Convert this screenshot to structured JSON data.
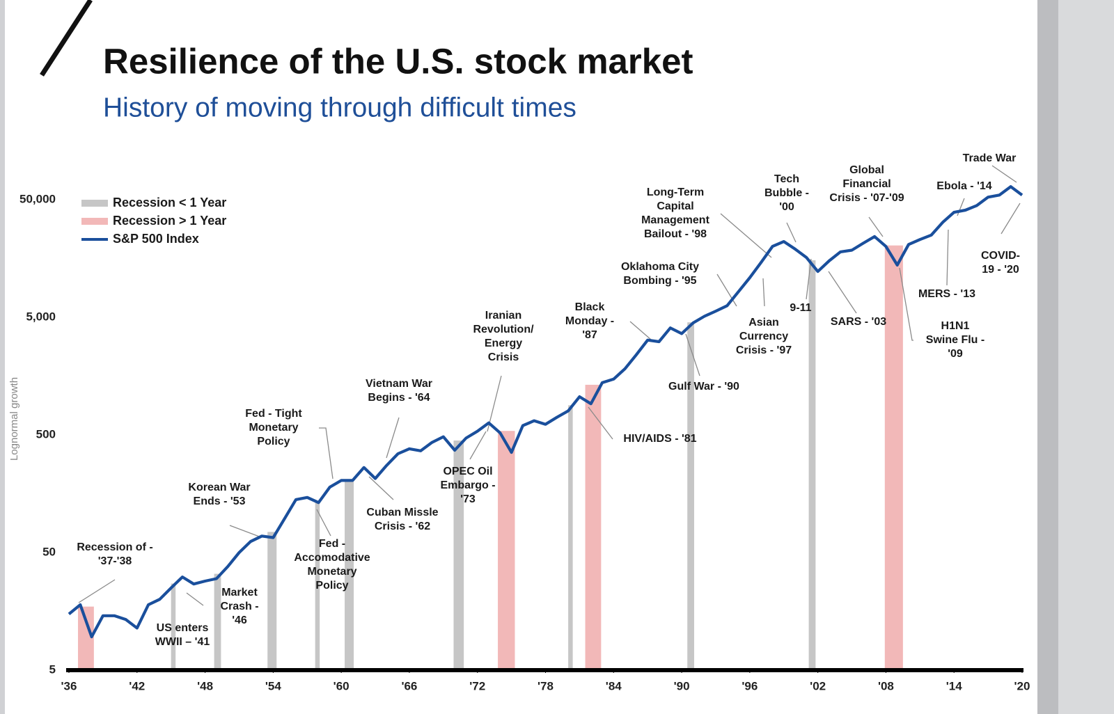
{
  "chart_data": {
    "type": "line",
    "title": "Resilience of the U.S. stock market",
    "subtitle": "History of moving through difficult times",
    "y_label": "Lognormal growth",
    "log_scale": true,
    "xlim": [
      1936,
      2020
    ],
    "xticks": [
      {
        "value": 1936,
        "label": "'36"
      },
      {
        "value": 1942,
        "label": "'42"
      },
      {
        "value": 1948,
        "label": "'48"
      },
      {
        "value": 1954,
        "label": "'54"
      },
      {
        "value": 1960,
        "label": "'60"
      },
      {
        "value": 1966,
        "label": "'66"
      },
      {
        "value": 1972,
        "label": "'72"
      },
      {
        "value": 1978,
        "label": "'78"
      },
      {
        "value": 1984,
        "label": "'84"
      },
      {
        "value": 1990,
        "label": "'90"
      },
      {
        "value": 1996,
        "label": "'96"
      },
      {
        "value": 2002,
        "label": "'02"
      },
      {
        "value": 2008,
        "label": "'08"
      },
      {
        "value": 2014,
        "label": "'14"
      },
      {
        "value": 2020,
        "label": "'20"
      }
    ],
    "ylim": [
      5,
      100000
    ],
    "yticks": [
      5,
      50,
      500,
      {
        "value": 5000,
        "label": "5,000"
      },
      {
        "value": 50000,
        "label": "50,000"
      }
    ],
    "x": [
      1936,
      1937,
      1938,
      1939,
      1940,
      1941,
      1942,
      1943,
      1944,
      1945,
      1946,
      1947,
      1948,
      1949,
      1950,
      1951,
      1952,
      1953,
      1954,
      1955,
      1956,
      1957,
      1958,
      1959,
      1960,
      1961,
      1962,
      1963,
      1964,
      1965,
      1966,
      1967,
      1968,
      1969,
      1970,
      1971,
      1972,
      1973,
      1974,
      1975,
      1976,
      1977,
      1978,
      1979,
      1980,
      1981,
      1982,
      1983,
      1984,
      1985,
      1986,
      1987,
      1988,
      1989,
      1990,
      1991,
      1992,
      1993,
      1994,
      1995,
      1996,
      1997,
      1998,
      1999,
      2000,
      2001,
      2002,
      2003,
      2004,
      2005,
      2006,
      2007,
      2008,
      2009,
      2010,
      2011,
      2012,
      2013,
      2014,
      2015,
      2016,
      2017,
      2018,
      2019,
      2020
    ],
    "series": [
      {
        "name": "S&P 500 Index",
        "color": "#1a4f9c",
        "values": [
          15,
          18,
          9.6,
          14.5,
          14.5,
          13.5,
          11.4,
          18,
          20,
          25,
          31,
          27,
          28.6,
          30,
          38,
          50,
          62,
          69,
          67,
          97,
          141,
          147,
          133,
          180,
          205,
          205,
          264,
          213,
          275,
          346,
          381,
          366,
          432,
          482,
          370,
          470,
          537,
          632,
          520,
          355,
          600,
          660,
          615,
          705,
          800,
          1055,
          920,
          1390,
          1490,
          1825,
          2400,
          3200,
          3100,
          4060,
          3630,
          4470,
          5100,
          5640,
          6270,
          8250,
          10850,
          14650,
          20000,
          22000,
          19000,
          16100,
          12250,
          15100,
          18000,
          18600,
          21300,
          24300,
          20000,
          13900,
          20800,
          22900,
          25000,
          32000,
          39000,
          40700,
          44500,
          52500,
          54700,
          64500,
          54700
        ]
      }
    ],
    "bands": [
      {
        "name": "Recession < 1 Year",
        "color": "#c6c6c6",
        "ranges": [
          [
            1945,
            1945.4
          ],
          [
            1948.8,
            1949.4
          ],
          [
            1953.5,
            1954.3
          ],
          [
            1957.7,
            1958.1
          ],
          [
            1960.3,
            1961.1
          ],
          [
            1969.9,
            1970.8
          ],
          [
            1980,
            1980.4
          ],
          [
            1990.5,
            1991.1
          ],
          [
            2001.2,
            2001.8
          ]
        ]
      },
      {
        "name": "Recession > 1 Year",
        "color": "#f2b8b8",
        "ranges": [
          [
            1936.8,
            1938.2
          ],
          [
            1973.8,
            1975.3
          ],
          [
            1981.5,
            1982.9
          ],
          [
            2007.9,
            2009.5
          ]
        ]
      }
    ],
    "annotations": [
      "Recession of -\n'37-'38",
      "US enters\nWWII – '41",
      "Market\nCrash -\n'46",
      "Korean War\nEnds - '53",
      "Fed - Tight\nMonetary\nPolicy",
      "Fed -\nAccomodative\nMonetary\nPolicy",
      "Vietnam War\nBegins - '64",
      "Cuban Missle\nCrisis - '62",
      "OPEC Oil\nEmbargo -\n'73",
      "Iranian\nRevolution/\nEnergy\nCrisis",
      "Black\nMonday -\n'87",
      "HIV/AIDS - '81",
      "Oklahoma City\nBombing - '95",
      "Gulf War - '90",
      "Long-Term\nCapital\nManagement\nBailout - '98",
      "Asian\nCurrency\nCrisis - '97",
      "Tech\nBubble -\n'00",
      "9-11",
      "SARS - '03",
      "Global\nFinancial\nCrisis - '07-'09",
      "H1N1\nSwine Flu -\n'09",
      "MERS - '13",
      "Ebola - '14",
      "Trade War",
      "COVID-\n19 - '20"
    ]
  }
}
